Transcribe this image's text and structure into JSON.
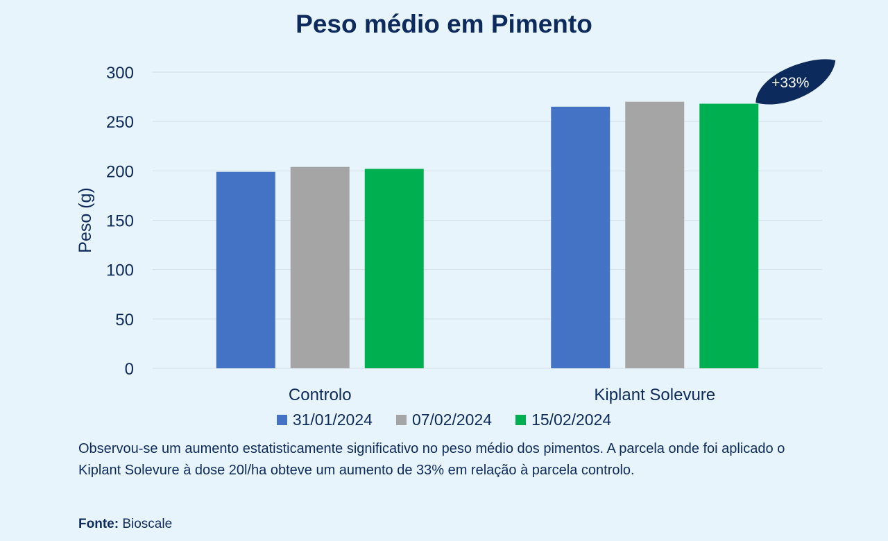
{
  "header": {
    "title": "Peso médio em Pimento"
  },
  "chart_data": {
    "type": "bar",
    "categories": [
      "Controlo",
      "Kiplant Solevure"
    ],
    "series": [
      {
        "name": "31/01/2024",
        "values": [
          199,
          265
        ],
        "color": "#4472c4"
      },
      {
        "name": "07/02/2024",
        "values": [
          204,
          270
        ],
        "color": "#a5a5a5"
      },
      {
        "name": "15/02/2024",
        "values": [
          202,
          268
        ],
        "color": "#00b050"
      }
    ],
    "ylabel": "Peso (g)",
    "ylim": [
      0,
      300
    ],
    "yticks": [
      0,
      50,
      100,
      150,
      200,
      250,
      300
    ],
    "grid": true,
    "legend_position": "bottom",
    "annotation": {
      "text": "+33%",
      "category": "Kiplant Solevure"
    }
  },
  "caption": "Observou-se um aumento estatisticamente significativo no peso médio dos pimentos. A parcela onde foi aplicado o Kiplant Solevure à dose 20l/ha obteve um aumento de 33% em relação à parcela controlo.",
  "source": {
    "label": "Fonte:",
    "value": "Bioscale"
  }
}
